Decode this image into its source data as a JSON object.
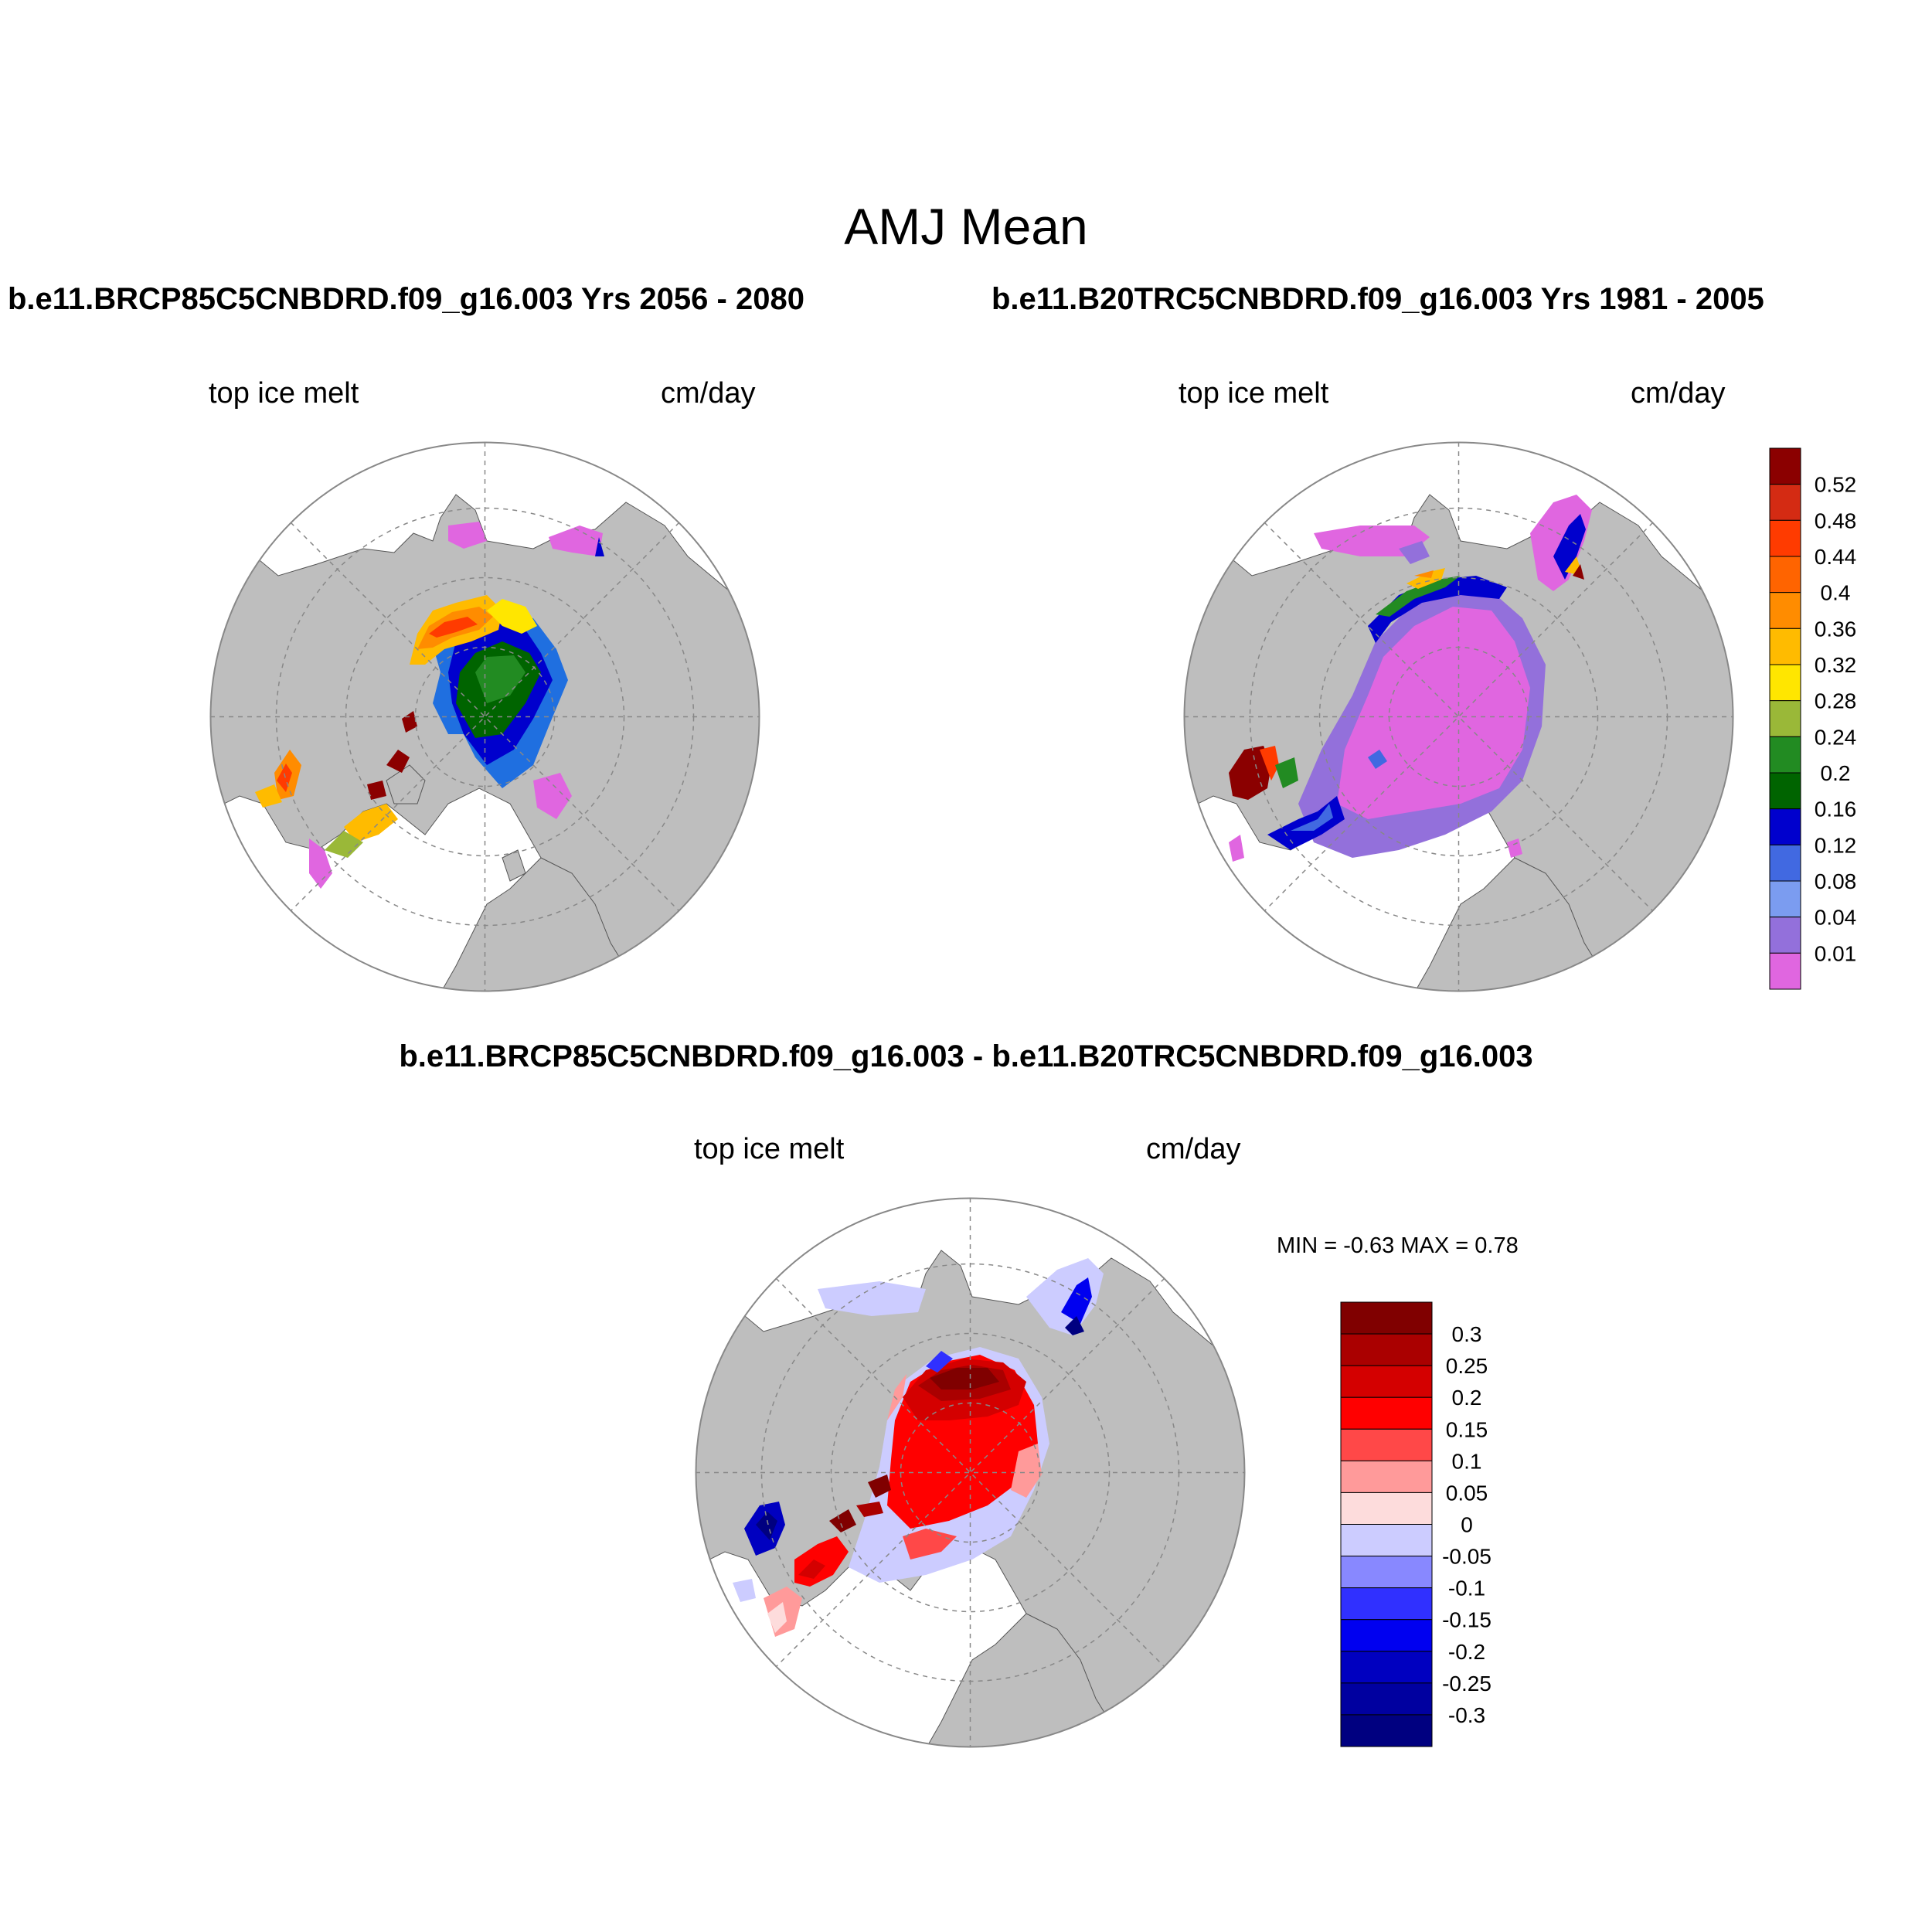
{
  "figure": {
    "title": "AMJ Mean",
    "left_case_title": "b.e11.BRCP85C5CNBDRD.f09_g16.003  Yrs 2056 - 2080",
    "right_case_title": "b.e11.B20TRC5CNBDRD.f09_g16.003  Yrs 1981 - 2005",
    "diff_title": "b.e11.BRCP85C5CNBDRD.f09_g16.003 - b.e11.B20TRC5CNBDRD.f09_g16.003"
  },
  "panels": {
    "left": {
      "variable": "top ice melt",
      "units": "cm/day"
    },
    "right": {
      "variable": "top ice melt",
      "units": "cm/day"
    },
    "diff": {
      "variable": "top ice melt",
      "units": "cm/day",
      "minmax": "MIN =  -0.63 MAX =   0.78"
    }
  },
  "colors": {
    "land": "#bebebe",
    "ocean": "#ffffff",
    "grid": "#888888"
  },
  "chart_data": [
    {
      "type": "heatmap",
      "name": "mean colorbar",
      "levels": [
        "0.52",
        "0.48",
        "0.44",
        "0.4",
        "0.36",
        "0.32",
        "0.28",
        "0.24",
        "0.2",
        "0.16",
        "0.12",
        "0.08",
        "0.04",
        "0.01"
      ],
      "colors": [
        "#8b0000",
        "#d42b13",
        "#ff3b00",
        "#ff6400",
        "#ff8c00",
        "#ffbb00",
        "#ffe600",
        "#9ab838",
        "#228b22",
        "#006400",
        "#0000cd",
        "#4169e1",
        "#7b9cf0",
        "#9370db",
        "#e066e0"
      ]
    },
    {
      "type": "heatmap",
      "name": "difference colorbar",
      "levels": [
        "0.3",
        "0.25",
        "0.2",
        "0.15",
        "0.1",
        "0.05",
        "0",
        "-0.05",
        "-0.1",
        "-0.15",
        "-0.2",
        "-0.25",
        "-0.3"
      ],
      "colors": [
        "#800000",
        "#aa0000",
        "#d40000",
        "#ff0000",
        "#ff4848",
        "#ff9a9a",
        "#fddcdc",
        "#ccccff",
        "#8888ff",
        "#3030ff",
        "#0000f0",
        "#0000c0",
        "#0000a0",
        "#000080"
      ]
    }
  ]
}
